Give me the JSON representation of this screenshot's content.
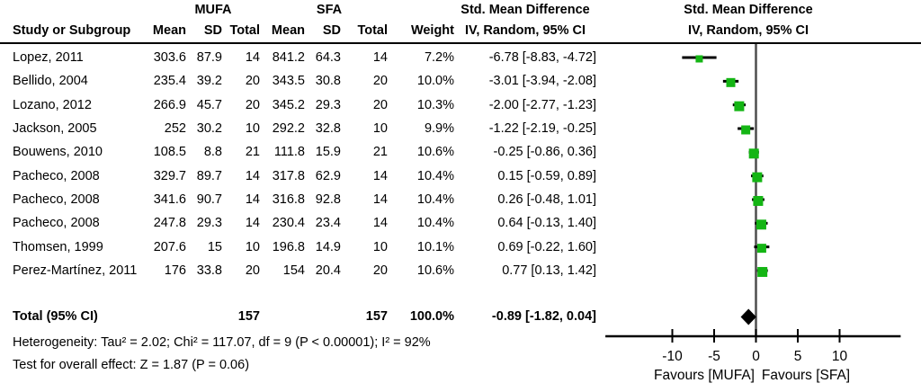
{
  "table": {
    "group_headers": {
      "mufa": "MUFA",
      "sfa": "SFA",
      "smd_left": "Std. Mean Difference",
      "smd_right": "Std. Mean Difference"
    },
    "col_headers": {
      "study": "Study or Subgroup",
      "mean1": "Mean",
      "sd1": "SD",
      "total1": "Total",
      "mean2": "Mean",
      "sd2": "SD",
      "total2": "Total",
      "weight": "Weight",
      "ci_left": "IV, Random, 95% CI",
      "ci_right": "IV, Random, 95% CI"
    },
    "rows": [
      {
        "study": "Lopez, 2011",
        "mean1": "303.6",
        "sd1": "87.9",
        "total1": "14",
        "mean2": "841.2",
        "sd2": "64.3",
        "total2": "14",
        "weight": "7.2%",
        "ci": "-6.78 [-8.83, -4.72]"
      },
      {
        "study": "Bellido, 2004",
        "mean1": "235.4",
        "sd1": "39.2",
        "total1": "20",
        "mean2": "343.5",
        "sd2": "30.8",
        "total2": "20",
        "weight": "10.0%",
        "ci": "-3.01 [-3.94, -2.08]"
      },
      {
        "study": "Lozano, 2012",
        "mean1": "266.9",
        "sd1": "45.7",
        "total1": "20",
        "mean2": "345.2",
        "sd2": "29.3",
        "total2": "20",
        "weight": "10.3%",
        "ci": "-2.00 [-2.77, -1.23]"
      },
      {
        "study": "Jackson, 2005",
        "mean1": "252",
        "sd1": "30.2",
        "total1": "10",
        "mean2": "292.2",
        "sd2": "32.8",
        "total2": "10",
        "weight": "9.9%",
        "ci": "-1.22 [-2.19, -0.25]"
      },
      {
        "study": "Bouwens, 2010",
        "mean1": "108.5",
        "sd1": "8.8",
        "total1": "21",
        "mean2": "111.8",
        "sd2": "15.9",
        "total2": "21",
        "weight": "10.6%",
        "ci": "-0.25 [-0.86, 0.36]"
      },
      {
        "study": "Pacheco, 2008",
        "mean1": "329.7",
        "sd1": "89.7",
        "total1": "14",
        "mean2": "317.8",
        "sd2": "62.9",
        "total2": "14",
        "weight": "10.4%",
        "ci": "0.15 [-0.59, 0.89]"
      },
      {
        "study": "Pacheco, 2008",
        "mean1": "341.6",
        "sd1": "90.7",
        "total1": "14",
        "mean2": "316.8",
        "sd2": "92.8",
        "total2": "14",
        "weight": "10.4%",
        "ci": "0.26 [-0.48, 1.01]"
      },
      {
        "study": "Pacheco, 2008",
        "mean1": "247.8",
        "sd1": "29.3",
        "total1": "14",
        "mean2": "230.4",
        "sd2": "23.4",
        "total2": "14",
        "weight": "10.4%",
        "ci": "0.64 [-0.13, 1.40]"
      },
      {
        "study": "Thomsen, 1999",
        "mean1": "207.6",
        "sd1": "15",
        "total1": "10",
        "mean2": "196.8",
        "sd2": "14.9",
        "total2": "10",
        "weight": "10.1%",
        "ci": "0.69 [-0.22, 1.60]"
      },
      {
        "study": "Perez-Martínez, 2011",
        "mean1": "176",
        "sd1": "33.8",
        "total1": "20",
        "mean2": "154",
        "sd2": "20.4",
        "total2": "20",
        "weight": "10.6%",
        "ci": "0.77 [0.13, 1.42]"
      }
    ],
    "total_row": {
      "label": "Total (95% CI)",
      "total1": "157",
      "total2": "157",
      "weight": "100.0%",
      "ci": "-0.89 [-1.82, 0.04]"
    },
    "footer": {
      "heterogeneity": "Heterogeneity: Tau² = 2.02; Chi² = 117.07, df = 9 (P < 0.00001); I² = 92%",
      "overall_effect": "Test for overall effect: Z = 1.87 (P = 0.06)"
    }
  },
  "chart_data": {
    "type": "forest",
    "title": "Std. Mean Difference",
    "subtitle": "IV, Random, 95% CI",
    "x_ticks": [
      -10,
      -5,
      0,
      5,
      10
    ],
    "x_range": [
      -18,
      17.3
    ],
    "favours_left": "Favours [MUFA]",
    "favours_right": "Favours [SFA]",
    "studies": [
      {
        "name": "Lopez, 2011",
        "smd": -6.78,
        "ci_low": -8.83,
        "ci_high": -4.72,
        "weight_pct": 7.2
      },
      {
        "name": "Bellido, 2004",
        "smd": -3.01,
        "ci_low": -3.94,
        "ci_high": -2.08,
        "weight_pct": 10.0
      },
      {
        "name": "Lozano, 2012",
        "smd": -2.0,
        "ci_low": -2.77,
        "ci_high": -1.23,
        "weight_pct": 10.3
      },
      {
        "name": "Jackson, 2005",
        "smd": -1.22,
        "ci_low": -2.19,
        "ci_high": -0.25,
        "weight_pct": 9.9
      },
      {
        "name": "Bouwens, 2010",
        "smd": -0.25,
        "ci_low": -0.86,
        "ci_high": 0.36,
        "weight_pct": 10.6
      },
      {
        "name": "Pacheco, 2008",
        "smd": 0.15,
        "ci_low": -0.59,
        "ci_high": 0.89,
        "weight_pct": 10.4
      },
      {
        "name": "Pacheco, 2008",
        "smd": 0.26,
        "ci_low": -0.48,
        "ci_high": 1.01,
        "weight_pct": 10.4
      },
      {
        "name": "Pacheco, 2008",
        "smd": 0.64,
        "ci_low": -0.13,
        "ci_high": 1.4,
        "weight_pct": 10.4
      },
      {
        "name": "Thomsen, 1999",
        "smd": 0.69,
        "ci_low": -0.22,
        "ci_high": 1.6,
        "weight_pct": 10.1
      },
      {
        "name": "Perez-Martínez, 2011",
        "smd": 0.77,
        "ci_low": 0.13,
        "ci_high": 1.42,
        "weight_pct": 10.6
      }
    ],
    "total": {
      "smd": -0.89,
      "ci_low": -1.82,
      "ci_high": 0.04
    },
    "marker_color": "#14b514",
    "ci_line_color": "#000000",
    "zero_line_color": "#4d4d4d",
    "axis_color": "#000000"
  }
}
